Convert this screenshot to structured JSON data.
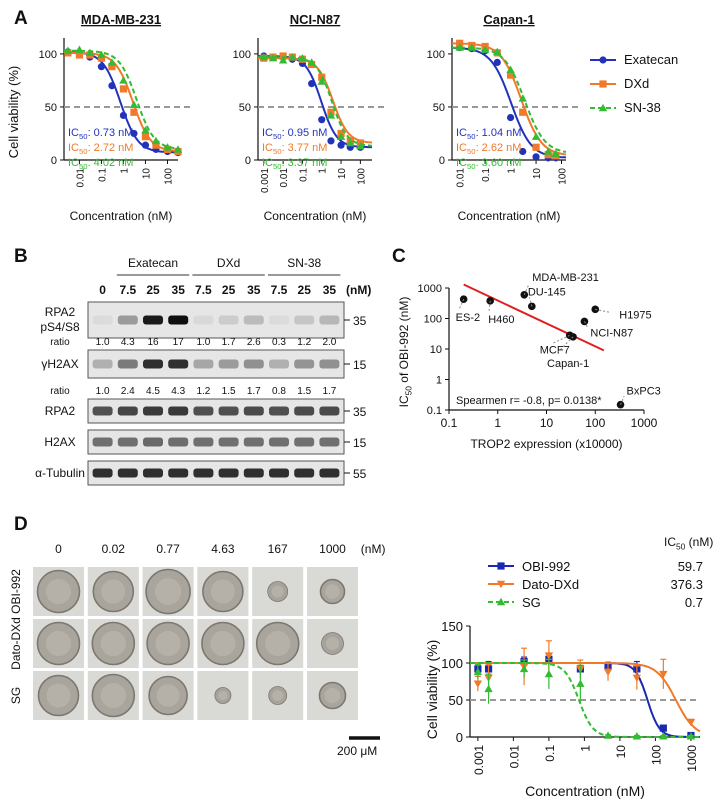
{
  "panels": {
    "A": "A",
    "B": "B",
    "C": "C",
    "D": "D"
  },
  "colors": {
    "exatecan": "#2233bb",
    "dxd": "#f07a2a",
    "sn38": "#33bb33",
    "obi": "#1a2ab0",
    "dato": "#f07a2a",
    "sg": "#33bb33",
    "ref": "#999999",
    "fit": "#e02020"
  },
  "panelA": {
    "ylabel": "Cell viability (%)",
    "xlabel": "Concentration (nM)",
    "legend": [
      {
        "name": "Exatecan",
        "key": "exatecan"
      },
      {
        "name": "DXd",
        "key": "dxd"
      },
      {
        "name": "SN-38",
        "key": "sn38"
      }
    ],
    "ic50_prefix": "IC",
    "ic50_sub": "50",
    "plots": [
      {
        "title": "MDA-MB-231",
        "xticks": [
          "0.01",
          "0.1",
          "1",
          "10",
          "100"
        ],
        "ic50": [
          "0.73 nM",
          "2.72 nM",
          "4.02 nM"
        ]
      },
      {
        "title": "NCI-N87",
        "xticks": [
          "0.001",
          "0.01",
          "0.1",
          "1",
          "10",
          "100"
        ],
        "ic50": [
          "0.95 nM",
          "3.77 nM",
          "3.37 nM"
        ]
      },
      {
        "title": "Capan-1",
        "xticks": [
          "0.01",
          "0.1",
          "1",
          "10",
          "100"
        ],
        "ic50": [
          "1.04 nM",
          "2.62 nM",
          "3.60 nM"
        ]
      }
    ]
  },
  "panelB": {
    "groups": [
      "Exatecan",
      "DXd",
      "SN-38"
    ],
    "doses": [
      "0",
      "7.5",
      "25",
      "35",
      "7.5",
      "25",
      "35",
      "7.5",
      "25",
      "35"
    ],
    "dose_unit": "(nM)",
    "rows": [
      {
        "label1": "RPA2",
        "label2": "pS4/S8",
        "mw": "35"
      },
      {
        "label1": "γH2AX",
        "label2": "",
        "mw": "15"
      },
      {
        "label1": "RPA2",
        "label2": "",
        "mw": "35"
      },
      {
        "label1": "H2AX",
        "label2": "",
        "mw": "15"
      },
      {
        "label1": "α-Tubulin",
        "label2": "",
        "mw": "55"
      }
    ],
    "ratio_label": "ratio",
    "ratios1": [
      "1.0",
      "4.3",
      "16",
      "17",
      "1.0",
      "1.7",
      "2.6",
      "0.3",
      "1.2",
      "2.0"
    ],
    "ratios2": [
      "1.0",
      "2.4",
      "4.5",
      "4.3",
      "1.2",
      "1.5",
      "1.7",
      "0.8",
      "1.5",
      "1.7"
    ]
  },
  "chart_data": [
    {
      "type": "line",
      "title": "MDA-MB-231",
      "xlabel": "Concentration (nM)",
      "ylabel": "Cell viability (%)",
      "xscale": "log",
      "xlim": [
        0.002,
        300
      ],
      "ylim": [
        0,
        115
      ],
      "reference_line": 50,
      "series": [
        {
          "name": "Exatecan",
          "ic50": 0.73,
          "x": [
            0.003,
            0.01,
            0.03,
            0.1,
            0.3,
            1,
            3,
            10,
            30,
            100,
            300
          ],
          "y": [
            102,
            100,
            97,
            88,
            70,
            42,
            25,
            14,
            10,
            8,
            7
          ]
        },
        {
          "name": "DXd",
          "ic50": 2.72,
          "x": [
            0.003,
            0.01,
            0.03,
            0.1,
            0.3,
            1,
            3,
            10,
            30,
            100,
            300
          ],
          "y": [
            101,
            99,
            99,
            96,
            88,
            67,
            45,
            22,
            14,
            10,
            8
          ]
        },
        {
          "name": "SN-38",
          "ic50": 4.02,
          "x": [
            0.003,
            0.01,
            0.03,
            0.1,
            0.3,
            1,
            3,
            10,
            30,
            100,
            300
          ],
          "y": [
            103,
            104,
            101,
            99,
            92,
            75,
            52,
            28,
            18,
            12,
            10
          ]
        }
      ]
    },
    {
      "type": "line",
      "title": "NCI-N87",
      "xlabel": "Concentration (nM)",
      "ylabel": "Cell viability (%)",
      "xscale": "log",
      "xlim": [
        0.0005,
        400
      ],
      "ylim": [
        0,
        115
      ],
      "reference_line": 50,
      "series": [
        {
          "name": "Exatecan",
          "ic50": 0.95,
          "x": [
            0.001,
            0.003,
            0.01,
            0.03,
            0.1,
            0.3,
            1,
            3,
            10,
            30,
            100
          ],
          "y": [
            98,
            97,
            97,
            95,
            91,
            72,
            38,
            18,
            14,
            12,
            12
          ]
        },
        {
          "name": "DXd",
          "ic50": 3.77,
          "x": [
            0.001,
            0.003,
            0.01,
            0.03,
            0.1,
            0.3,
            1,
            3,
            10,
            30,
            100
          ],
          "y": [
            96,
            97,
            98,
            97,
            95,
            90,
            78,
            45,
            25,
            18,
            16
          ]
        },
        {
          "name": "SN-38",
          "ic50": 3.37,
          "x": [
            0.001,
            0.003,
            0.01,
            0.03,
            0.1,
            0.3,
            1,
            3,
            10,
            30,
            100
          ],
          "y": [
            97,
            96,
            94,
            97,
            96,
            92,
            74,
            42,
            22,
            16,
            13
          ]
        }
      ]
    },
    {
      "type": "line",
      "title": "Capan-1",
      "xlabel": "Concentration (nM)",
      "ylabel": "Cell viability (%)",
      "xscale": "log",
      "xlim": [
        0.005,
        150
      ],
      "ylim": [
        0,
        115
      ],
      "reference_line": 50,
      "series": [
        {
          "name": "Exatecan",
          "ic50": 1.04,
          "x": [
            0.01,
            0.03,
            0.1,
            0.3,
            1,
            3,
            10,
            30,
            60
          ],
          "y": [
            106,
            105,
            103,
            92,
            40,
            8,
            3,
            2,
            2
          ]
        },
        {
          "name": "DXd",
          "ic50": 2.62,
          "x": [
            0.01,
            0.03,
            0.1,
            0.3,
            1,
            3,
            10,
            30,
            60
          ],
          "y": [
            110,
            108,
            107,
            101,
            80,
            45,
            12,
            5,
            4
          ]
        },
        {
          "name": "SN-38",
          "ic50": 3.6,
          "x": [
            0.01,
            0.03,
            0.1,
            0.3,
            1,
            3,
            10,
            30,
            60
          ],
          "y": [
            106,
            106,
            104,
            102,
            85,
            58,
            22,
            8,
            6
          ]
        }
      ]
    },
    {
      "type": "scatter",
      "xlabel": "TROP2 expression (x10000)",
      "ylabel_pre": "IC",
      "ylabel_sub": "50",
      "ylabel_post": " of OBI-992  (nM)",
      "xscale": "log",
      "yscale": "log",
      "xlim": [
        0.1,
        1000
      ],
      "ylim": [
        0.1,
        1000
      ],
      "xticks": [
        "0.1",
        "1",
        "10",
        "100",
        "1000"
      ],
      "yticks": [
        "0.1",
        "1",
        "10",
        "100",
        "1000"
      ],
      "points": [
        {
          "label": "ES-2",
          "x": 0.2,
          "y": 430
        },
        {
          "label": "H460",
          "x": 0.7,
          "y": 380
        },
        {
          "label": "MDA-MB-231",
          "x": 3.5,
          "y": 600
        },
        {
          "label": "DU-145",
          "x": 5,
          "y": 250
        },
        {
          "label": "MCF7",
          "x": 30,
          "y": 28
        },
        {
          "label": "Capan-1",
          "x": 35,
          "y": 25
        },
        {
          "label": "NCI-N87",
          "x": 60,
          "y": 80
        },
        {
          "label": "H1975",
          "x": 100,
          "y": 200
        },
        {
          "label": "BxPC3",
          "x": 330,
          "y": 0.15
        }
      ],
      "fit": {
        "x": [
          0.2,
          150
        ],
        "y": [
          1300,
          9
        ]
      },
      "annotation": "Spearmen  r= -0.8, p= 0.0138*"
    },
    {
      "type": "line",
      "xlabel": "Concentration (nM)",
      "ylabel": "Cell viability (%)",
      "xscale": "log",
      "xlim": [
        0.0006,
        1800
      ],
      "ylim": [
        0,
        150
      ],
      "yticks": [
        "0",
        "50",
        "100",
        "150"
      ],
      "xticks": [
        "0.001",
        "0.01",
        "0.1",
        "1",
        "10",
        "100",
        "1000"
      ],
      "reference_line": 50,
      "ic50_header_pre": "IC",
      "ic50_header_sub": "50",
      "ic50_header_post": " (nM)",
      "series": [
        {
          "name": "OBI-992",
          "ic50_label": "59.7",
          "ic50": 59.7,
          "x": [
            0.001,
            0.002,
            0.02,
            0.1,
            0.77,
            4.63,
            30,
            167,
            1000
          ],
          "y": [
            92,
            92,
            102,
            105,
            92,
            95,
            92,
            12,
            2
          ],
          "err": [
            8,
            10,
            6,
            8,
            8,
            6,
            10,
            3,
            2
          ]
        },
        {
          "name": "Dato-DXd",
          "ic50_label": "376.3",
          "ic50": 376.3,
          "x": [
            0.001,
            0.002,
            0.02,
            0.1,
            0.77,
            4.63,
            30,
            167,
            1000
          ],
          "y": [
            72,
            80,
            95,
            110,
            92,
            88,
            80,
            85,
            20
          ],
          "err": [
            10,
            18,
            25,
            20,
            12,
            12,
            16,
            20,
            4
          ]
        },
        {
          "name": "SG",
          "ic50_label": "0.7",
          "ic50": 0.7,
          "x": [
            0.001,
            0.002,
            0.02,
            0.1,
            0.77,
            4.63,
            30,
            167,
            1000
          ],
          "y": [
            88,
            65,
            92,
            85,
            72,
            2,
            1,
            1,
            1
          ],
          "err": [
            10,
            20,
            12,
            20,
            25,
            1,
            1,
            1,
            1
          ]
        }
      ]
    }
  ],
  "panelD": {
    "doses": [
      "0",
      "0.02",
      "0.77",
      "4.63",
      "167",
      "1000"
    ],
    "dose_unit": "(nM)",
    "rows": [
      "OBI-992",
      "Dato-DXd",
      "SG"
    ],
    "scalebar": "200 μM"
  }
}
